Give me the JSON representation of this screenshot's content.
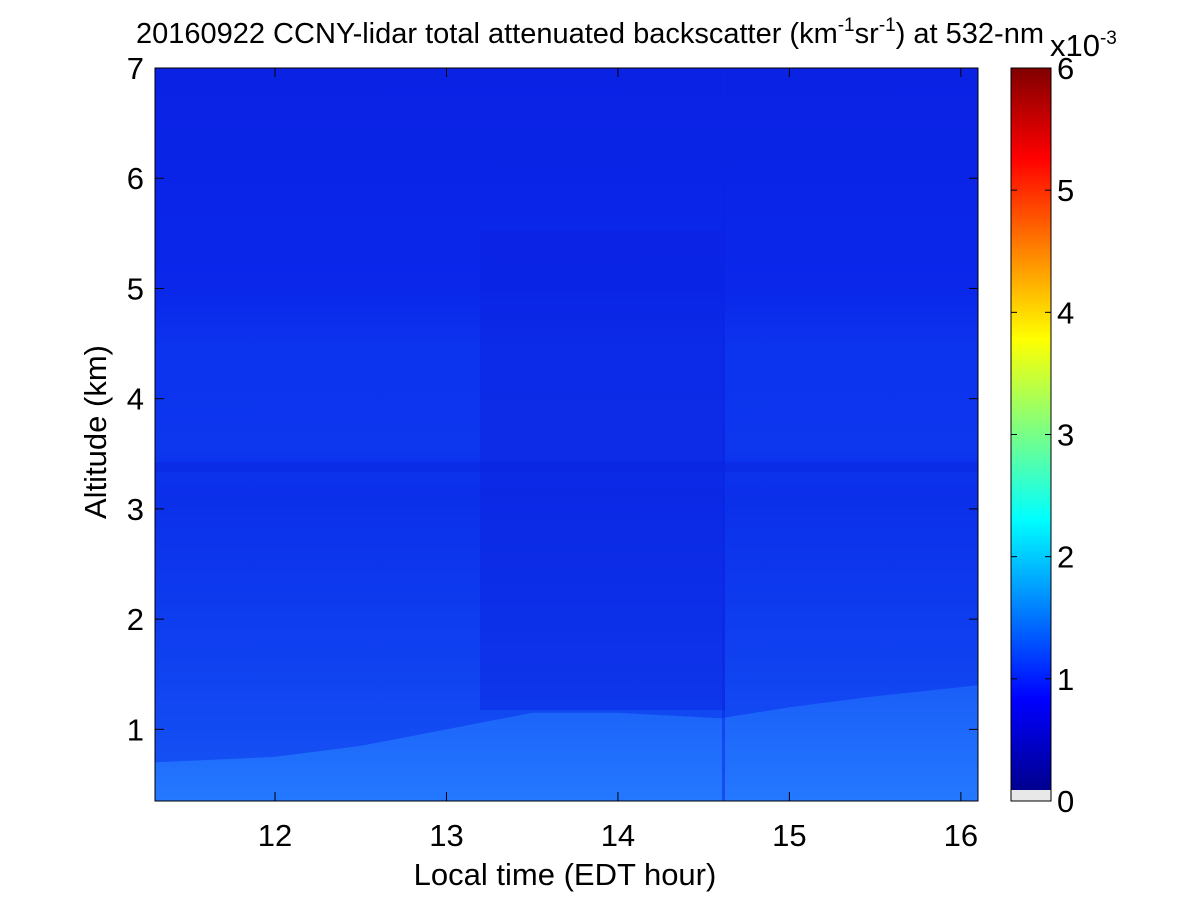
{
  "chart_data": {
    "type": "heatmap",
    "title": {
      "prefix": "20160922 CCNY-lidar total attenuated backscatter (km",
      "exp1": "-1",
      "mid": "sr",
      "exp2": "-1",
      "suffix": ") at 532-nm"
    },
    "xlabel": "Local time (EDT hour)",
    "ylabel": "Altitude (km)",
    "xlim": [
      11.3,
      16.1
    ],
    "ylim": [
      0.35,
      7
    ],
    "xticks": [
      "12",
      "13",
      "14",
      "15",
      "16"
    ],
    "yticks": [
      "1",
      "2",
      "3",
      "4",
      "5",
      "6",
      "7"
    ],
    "colorbar": {
      "range": [
        0,
        6
      ],
      "ticks": [
        "0",
        "1",
        "2",
        "3",
        "4",
        "5",
        "6"
      ],
      "multiplier": {
        "base": "x10",
        "exp": "-3"
      },
      "colormap": "jet",
      "colors": [
        "#00008f",
        "#0000ff",
        "#00ffff",
        "#ffff00",
        "#ff0000",
        "#800000"
      ],
      "underflow_color": "#e8e8e8"
    },
    "colors": {
      "upper_layer": "#0a24e6",
      "mid_layer": "#0d37f0",
      "lower_layer": "#1450f5",
      "boundary_layer": "#2070ff"
    },
    "layers": [
      {
        "altitude_range": [
          4.8,
          7.0
        ],
        "value": 0.6
      },
      {
        "altitude_range": [
          3.4,
          4.8
        ],
        "value": 0.8
      },
      {
        "altitude_range": [
          1.2,
          3.4
        ],
        "value": 0.9
      },
      {
        "altitude_range": [
          0.35,
          1.2
        ],
        "value": 1.3
      }
    ],
    "boundary_layer_top": [
      {
        "time": 11.3,
        "altitude": 0.7
      },
      {
        "time": 12.0,
        "altitude": 0.75
      },
      {
        "time": 12.5,
        "altitude": 0.85
      },
      {
        "time": 13.0,
        "altitude": 1.0
      },
      {
        "time": 13.5,
        "altitude": 1.15
      },
      {
        "time": 14.0,
        "altitude": 1.15
      },
      {
        "time": 14.6,
        "altitude": 1.1
      },
      {
        "time": 15.0,
        "altitude": 1.2
      },
      {
        "time": 15.5,
        "altitude": 1.3
      },
      {
        "time": 16.1,
        "altitude": 1.4
      }
    ]
  }
}
